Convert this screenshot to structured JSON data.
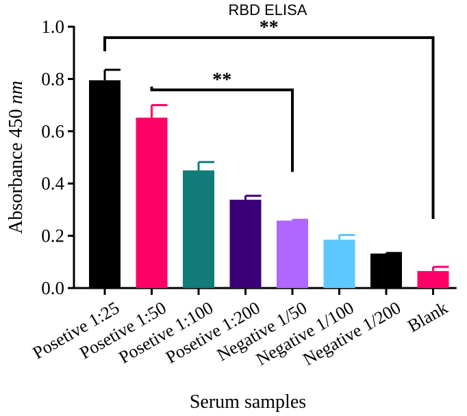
{
  "chart_data": {
    "type": "bar",
    "title": "RBD ELISA",
    "xlabel": "Serum samples",
    "ylabel_prefix": "Absorbance 450 ",
    "ylabel_unit": "nm",
    "ylim": [
      0,
      1.0
    ],
    "yticks": [
      "0.0",
      "0.2",
      "0.4",
      "0.6",
      "0.8",
      "1.0"
    ],
    "categories": [
      "Posetive 1:25",
      "Posetive 1:50",
      "Posetive 1:100",
      "Posetive 1:200",
      "Negative 1/50",
      "Negative 1/100",
      "Negative 1/200",
      "Blank"
    ],
    "values": [
      0.795,
      0.652,
      0.45,
      0.338,
      0.258,
      0.185,
      0.132,
      0.065
    ],
    "errors": [
      0.04,
      0.048,
      0.032,
      0.015,
      0.003,
      0.018,
      0.002,
      0.016
    ],
    "colors": [
      "#000000",
      "#ff0066",
      "#127c78",
      "#3b0077",
      "#b066ff",
      "#5cc8ff",
      "#000000",
      "#ff0066"
    ],
    "significance": [
      {
        "from": 0,
        "to": 7,
        "label": "**",
        "level": 1.0
      },
      {
        "from": 1,
        "to": 4,
        "label": "**",
        "level": 0.8
      }
    ]
  }
}
